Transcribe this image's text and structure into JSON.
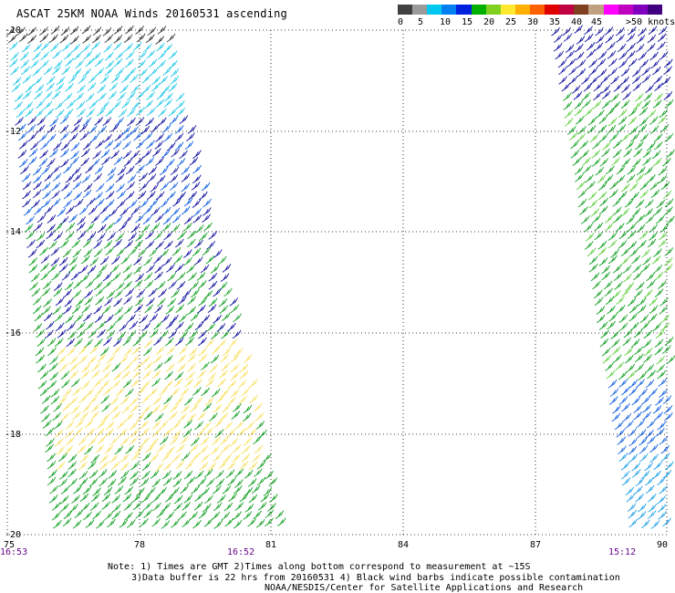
{
  "title": "ASCAT 25KM NOAA Winds 20160531 ascending",
  "legend": {
    "colors": [
      "#404040",
      "#9a9a9a",
      "#00c8f0",
      "#0080f0",
      "#0020e0",
      "#00b000",
      "#80d020",
      "#ffe830",
      "#ffb000",
      "#ff6000",
      "#e00000",
      "#c00040",
      "#804020",
      "#c0a080",
      "#ff00ff",
      "#c000c0",
      "#8000c0",
      "#400080"
    ],
    "labels": [
      "0",
      "5",
      "10",
      "15",
      "20",
      "25",
      "30",
      "35",
      "40",
      "45",
      ">50 knots"
    ]
  },
  "axes": {
    "lat_labels": [
      "-10",
      "-12",
      "-14",
      "-16",
      "-18",
      "-20"
    ],
    "lon_labels": [
      "75",
      "78",
      "81",
      "84",
      "87",
      "90"
    ],
    "bottom_times": [
      "16:53",
      "16:52",
      "15:12"
    ]
  },
  "notes": {
    "line1": "Note: 1) Times are GMT 2)Times along bottom correspond to measurement at ~15S",
    "line2": "3)Data buffer is 22 hrs from 20160531 4) Black wind barbs indicate possible contamination",
    "line3": "NOAA/NESDIS/Center for Satellite Applications and Research"
  }
}
